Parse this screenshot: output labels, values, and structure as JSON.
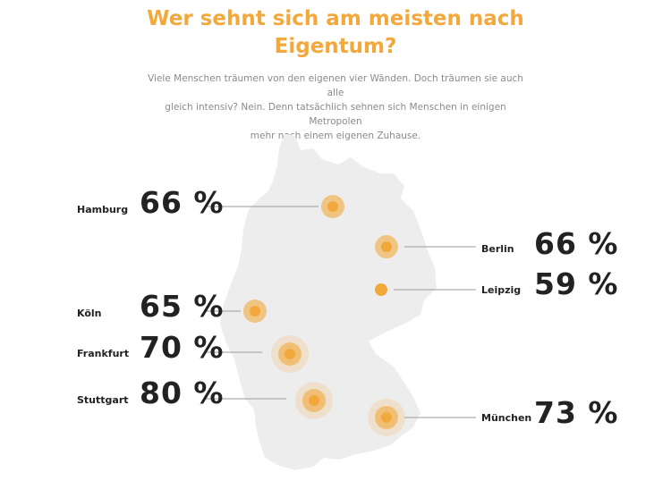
{
  "header": {
    "title_line1": "Wer sehnt sich am meisten nach",
    "title_line2": "Eigentum?",
    "intro_line1": "Viele Menschen träumen von den eigenen vier Wänden. Doch träumen sie auch alle",
    "intro_line2": "gleich intensiv? Nein. Denn tatsächlich sehnen sich Menschen in einigen Metropolen",
    "intro_line3": "mehr nach einem eigenen Zuhause."
  },
  "colors": {
    "accent": "#f2a83a",
    "map": "#ededed",
    "leader": "#9a9a9a",
    "text": "#222222"
  },
  "cities": [
    {
      "name": "Hamburg",
      "percent": "66 %",
      "value": 66
    },
    {
      "name": "Berlin",
      "percent": "66 %",
      "value": 66
    },
    {
      "name": "Leipzig",
      "percent": "59 %",
      "value": 59
    },
    {
      "name": "Köln",
      "percent": "65 %",
      "value": 65
    },
    {
      "name": "Frankfurt",
      "percent": "70 %",
      "value": 70
    },
    {
      "name": "Stuttgart",
      "percent": "80 %",
      "value": 80
    },
    {
      "name": "München",
      "percent": "73 %",
      "value": 73
    }
  ]
}
